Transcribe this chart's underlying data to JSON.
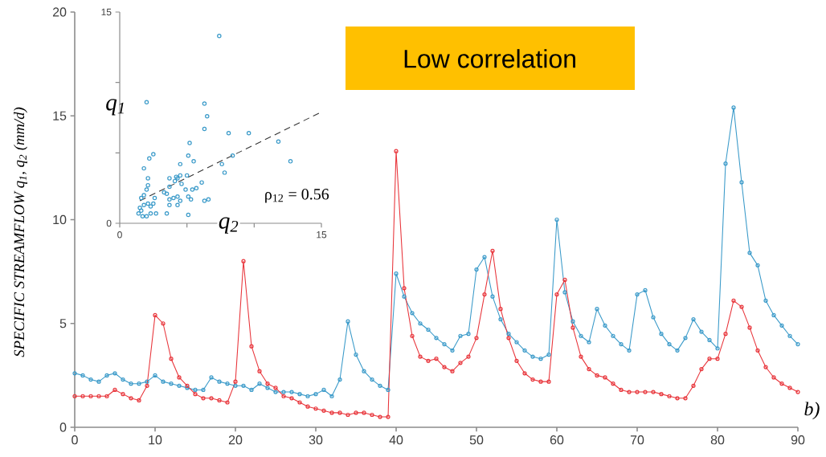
{
  "chart_data": [
    {
      "type": "line",
      "ylabel": "SPECIFIC STREAMFLOW   q$_{1}$, q$_{2}$ (mm/d)",
      "annotations": [
        "Low correlation",
        "b)"
      ],
      "x": [
        0,
        1,
        2,
        3,
        4,
        5,
        6,
        7,
        8,
        9,
        10,
        11,
        12,
        13,
        14,
        15,
        16,
        17,
        18,
        19,
        20,
        21,
        22,
        23,
        24,
        25,
        26,
        27,
        28,
        29,
        30,
        31,
        32,
        33,
        34,
        35,
        36,
        37,
        38,
        39,
        40,
        41,
        42,
        43,
        44,
        45,
        46,
        47,
        48,
        49,
        50,
        51,
        52,
        53,
        54,
        55,
        56,
        57,
        58,
        59,
        60,
        61,
        62,
        63,
        64,
        65,
        66,
        67,
        68,
        69,
        70,
        71,
        72,
        73,
        74,
        75,
        76,
        77,
        78,
        79,
        80,
        81,
        82,
        83,
        84,
        85,
        86,
        87,
        88,
        89,
        90
      ],
      "xlim": [
        0,
        90
      ],
      "xticks": [
        0,
        10,
        20,
        30,
        40,
        50,
        60,
        70,
        80,
        90
      ],
      "ylim": [
        0,
        20
      ],
      "yticks": [
        0,
        5,
        10,
        15,
        20
      ],
      "marker": "circle",
      "series": [
        {
          "color": "#3a9ac9",
          "values": [
            2.6,
            2.5,
            2.3,
            2.2,
            2.5,
            2.6,
            2.3,
            2.1,
            2.1,
            2.2,
            2.5,
            2.2,
            2.1,
            2.0,
            1.9,
            1.8,
            1.8,
            2.4,
            2.2,
            2.1,
            2.0,
            2.0,
            1.8,
            2.1,
            1.9,
            1.7,
            1.7,
            1.7,
            1.6,
            1.5,
            1.6,
            1.8,
            1.5,
            2.3,
            5.1,
            3.5,
            2.7,
            2.3,
            2.0,
            1.8,
            7.4,
            6.3,
            5.5,
            5.0,
            4.7,
            4.3,
            4.0,
            3.7,
            4.4,
            4.5,
            7.6,
            8.2,
            6.3,
            5.2,
            4.5,
            4.1,
            3.7,
            3.4,
            3.3,
            3.5,
            10.0,
            6.5,
            5.1,
            4.4,
            4.1,
            5.7,
            4.9,
            4.4,
            4.0,
            3.7,
            6.4,
            6.6,
            5.3,
            4.5,
            4.0,
            3.7,
            4.3,
            5.2,
            4.6,
            4.2,
            3.8,
            12.7,
            15.4,
            11.8,
            8.4,
            7.8,
            6.1,
            5.4,
            4.9,
            4.4,
            4.0
          ]
        },
        {
          "color": "#e8343a",
          "values": [
            1.5,
            1.5,
            1.5,
            1.5,
            1.5,
            1.8,
            1.6,
            1.4,
            1.3,
            2.0,
            5.4,
            5.0,
            3.3,
            2.4,
            2.0,
            1.6,
            1.4,
            1.4,
            1.3,
            1.2,
            2.2,
            8.0,
            3.9,
            2.7,
            2.1,
            1.9,
            1.5,
            1.4,
            1.2,
            1.0,
            0.9,
            0.8,
            0.7,
            0.7,
            0.6,
            0.7,
            0.7,
            0.6,
            0.5,
            0.5,
            13.3,
            6.7,
            4.4,
            3.4,
            3.2,
            3.3,
            2.9,
            2.7,
            3.1,
            3.4,
            4.3,
            6.4,
            8.5,
            5.7,
            4.3,
            3.2,
            2.6,
            2.3,
            2.2,
            2.2,
            6.4,
            7.1,
            4.8,
            3.4,
            2.8,
            2.5,
            2.4,
            2.1,
            1.8,
            1.7,
            1.7,
            1.7,
            1.7,
            1.6,
            1.5,
            1.4,
            1.4,
            2.0,
            2.8,
            3.3,
            3.3,
            4.5,
            6.1,
            5.8,
            4.8,
            3.7,
            2.9,
            2.4,
            2.1,
            1.9,
            1.7
          ]
        }
      ]
    },
    {
      "type": "scatter",
      "xlabel": "q$_{2}$",
      "ylabel": "q$_{1}$",
      "annotations": [
        "ρ$_{12}$ = 0.56"
      ],
      "xlim": [
        0,
        15
      ],
      "xticks": [
        0,
        {
          "value": 5,
          "label": null
        },
        {
          "value": 10,
          "label": null
        },
        15
      ],
      "ylim": [
        0,
        15
      ],
      "yticks": [
        0,
        {
          "value": 5,
          "label": null
        },
        {
          "value": 10,
          "label": null
        },
        15
      ],
      "marker": "circle",
      "x": [
        7.4,
        2.0,
        6.3,
        6.5,
        6.3,
        8.1,
        9.6,
        11.8,
        5.2,
        8.4,
        7.6,
        7.8,
        12.7,
        2.5,
        2.2,
        1.8,
        5.1,
        5.5,
        4.5,
        2.1,
        2.1,
        2.0,
        1.8,
        3.7,
        4.2,
        4.5,
        5.0,
        4.3,
        4.1,
        3.7,
        4.6,
        4.9,
        5.4,
        5.7,
        6.1,
        3.3,
        3.5,
        5.1,
        5.3,
        3.7,
        4.0,
        4.3,
        4.5,
        3.7,
        4.3,
        6.3,
        6.6,
        3.5,
        5.1,
        1.6,
        2.6,
        2.5,
        2.1,
        1.8,
        1.5,
        1.4,
        1.7,
        2.0,
        2.3,
        2.7,
        1.6,
        2.3
      ],
      "series": [
        {
          "color": "#3a9ac9",
          "values": [
            13.3,
            8.6,
            8.5,
            7.6,
            6.7,
            6.4,
            6.4,
            5.8,
            5.7,
            4.8,
            4.2,
            3.6,
            4.4,
            4.9,
            4.6,
            3.9,
            4.8,
            4.4,
            4.2,
            3.2,
            2.7,
            2.4,
            2.0,
            3.2,
            3.3,
            3.4,
            3.4,
            3.2,
            3.0,
            2.6,
            2.8,
            2.4,
            2.4,
            2.5,
            2.9,
            2.2,
            2.1,
            1.9,
            1.7,
            1.7,
            1.8,
            1.9,
            1.6,
            1.3,
            1.3,
            1.6,
            1.7,
            0.7,
            0.6,
            1.8,
            1.8,
            1.4,
            1.4,
            1.3,
            1.1,
            0.7,
            0.5,
            0.5,
            0.7,
            0.7,
            0.9,
            1.2
          ]
        },
        {
          "type": "line",
          "line_style": "dashed",
          "marker": "none",
          "color": "#333333",
          "x": [
            1.5,
            15
          ],
          "values": [
            1.6,
            7.9
          ]
        }
      ]
    }
  ]
}
